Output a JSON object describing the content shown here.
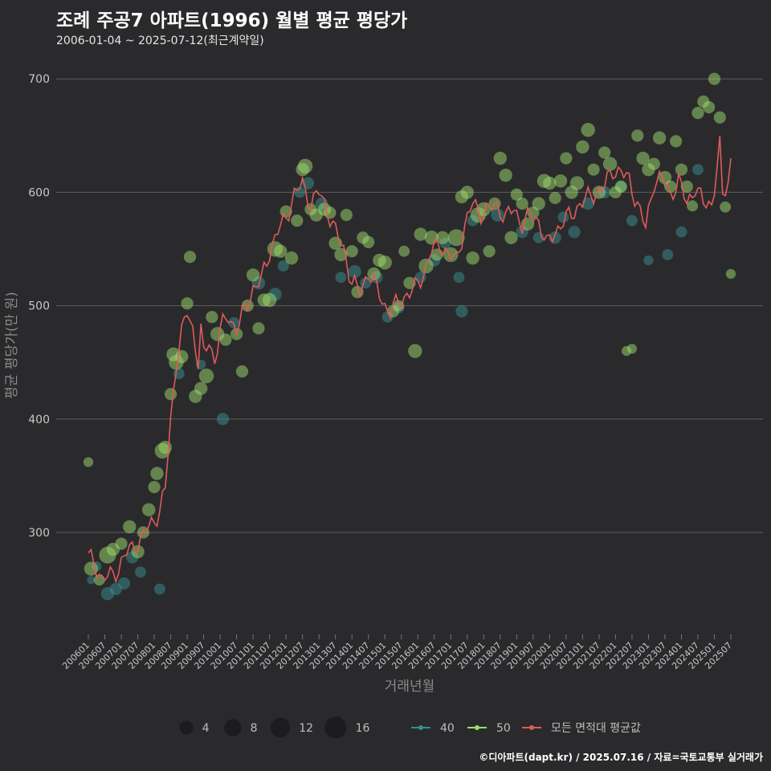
{
  "title": "조례 주공7 아파트(1996) 월별 평균 평당가",
  "subtitle": "2006-01-04 ~ 2025-07-12(최근계약일)",
  "credit": "©디아파트(dapt.kr) / 2025.07.16 / 자료=국토교통부 실거래가",
  "chart_data": {
    "type": "line",
    "title": "조례 주공7 아파트(1996) 월별 평균 평당가",
    "xlabel": "거래년월",
    "ylabel": "평균 평당가(만 원)",
    "ylim": [
      210,
      720
    ],
    "yticks": [
      300,
      400,
      500,
      600,
      700
    ],
    "grid": true,
    "legend_position": "bottom",
    "x_tick_labels": [
      "200601",
      "200607",
      "200701",
      "200707",
      "200801",
      "200807",
      "200901",
      "200907",
      "201001",
      "201007",
      "201101",
      "201107",
      "201201",
      "201207",
      "201301",
      "201307",
      "201401",
      "201407",
      "201501",
      "201507",
      "201601",
      "201607",
      "201701",
      "201707",
      "201801",
      "201807",
      "201901",
      "201907",
      "202001",
      "202007",
      "202101",
      "202107",
      "202201",
      "202207",
      "202301",
      "202307",
      "202401",
      "202407",
      "202501",
      "202507"
    ],
    "size_legend": {
      "title": "",
      "values": [
        4,
        8,
        12,
        16
      ]
    },
    "series_legend": [
      {
        "name": "40",
        "color": "#3a8f8f"
      },
      {
        "name": "50",
        "color": "#9fdc6e"
      },
      {
        "name": "모든 면적대 평균값",
        "color": "#e05a5a"
      }
    ],
    "line_anchors": {
      "series": "모든 면적대 평균값",
      "x_start": "2006-01",
      "points": [
        [
          "2006-01",
          278
        ],
        [
          "2006-03",
          275
        ],
        [
          "2006-06",
          258
        ],
        [
          "2006-09",
          262
        ],
        [
          "2006-12",
          268
        ],
        [
          "2007-03",
          282
        ],
        [
          "2007-06",
          290
        ],
        [
          "2007-08",
          292
        ],
        [
          "2007-11",
          305
        ],
        [
          "2008-01",
          312
        ],
        [
          "2008-03",
          318
        ],
        [
          "2008-05",
          338
        ],
        [
          "2008-07",
          400
        ],
        [
          "2008-09",
          450
        ],
        [
          "2008-11",
          475
        ],
        [
          "2009-01",
          495
        ],
        [
          "2009-03",
          480
        ],
        [
          "2009-05",
          450
        ],
        [
          "2009-06",
          478
        ],
        [
          "2009-07",
          455
        ],
        [
          "2009-09",
          470
        ],
        [
          "2009-11",
          450
        ],
        [
          "2010-01",
          478
        ],
        [
          "2010-04",
          492
        ],
        [
          "2010-07",
          478
        ],
        [
          "2010-10",
          497
        ],
        [
          "2011-01",
          515
        ],
        [
          "2011-04",
          522
        ],
        [
          "2011-07",
          548
        ],
        [
          "2011-10",
          565
        ],
        [
          "2012-01",
          578
        ],
        [
          "2012-04",
          598
        ],
        [
          "2012-07",
          607
        ],
        [
          "2012-10",
          590
        ],
        [
          "2013-01",
          600
        ],
        [
          "2013-04",
          585
        ],
        [
          "2013-07",
          565
        ],
        [
          "2013-10",
          550
        ],
        [
          "2014-01",
          520
        ],
        [
          "2014-04",
          512
        ],
        [
          "2014-07",
          530
        ],
        [
          "2014-10",
          515
        ],
        [
          "2015-01",
          500
        ],
        [
          "2015-03",
          495
        ],
        [
          "2015-06",
          503
        ],
        [
          "2015-09",
          510
        ],
        [
          "2015-12",
          515
        ],
        [
          "2016-03",
          528
        ],
        [
          "2016-06",
          548
        ],
        [
          "2016-09",
          555
        ],
        [
          "2016-12",
          545
        ],
        [
          "2017-03",
          540
        ],
        [
          "2017-06",
          570
        ],
        [
          "2017-09",
          590
        ],
        [
          "2017-12",
          582
        ],
        [
          "2018-03",
          585
        ],
        [
          "2018-06",
          588
        ],
        [
          "2018-09",
          578
        ],
        [
          "2018-12",
          585
        ],
        [
          "2019-03",
          572
        ],
        [
          "2019-06",
          580
        ],
        [
          "2019-09",
          575
        ],
        [
          "2019-12",
          553
        ],
        [
          "2020-03",
          565
        ],
        [
          "2020-06",
          575
        ],
        [
          "2020-09",
          580
        ],
        [
          "2020-12",
          590
        ],
        [
          "2021-03",
          595
        ],
        [
          "2021-06",
          600
        ],
        [
          "2021-09",
          605
        ],
        [
          "2021-12",
          620
        ],
        [
          "2022-03",
          618
        ],
        [
          "2022-06",
          610
        ],
        [
          "2022-09",
          590
        ],
        [
          "2022-12",
          568
        ],
        [
          "2023-03",
          610
        ],
        [
          "2023-06",
          612
        ],
        [
          "2023-09",
          598
        ],
        [
          "2023-12",
          610
        ],
        [
          "2024-03",
          590
        ],
        [
          "2024-06",
          605
        ],
        [
          "2024-09",
          590
        ],
        [
          "2024-12",
          590
        ],
        [
          "2025-01",
          605
        ],
        [
          "2025-03",
          640
        ],
        [
          "2025-04",
          595
        ],
        [
          "2025-06",
          610
        ],
        [
          "2025-07",
          630
        ]
      ]
    },
    "bubbles_40": [
      [
        "2006-02",
        258,
        1
      ],
      [
        "2006-04",
        270,
        2
      ],
      [
        "2006-08",
        246,
        5
      ],
      [
        "2006-11",
        250,
        4
      ],
      [
        "2007-02",
        255,
        4
      ],
      [
        "2007-05",
        278,
        4
      ],
      [
        "2007-08",
        265,
        3
      ],
      [
        "2008-03",
        250,
        3
      ],
      [
        "2008-10",
        440,
        3
      ],
      [
        "2009-06",
        448,
        2
      ],
      [
        "2010-02",
        400,
        4
      ],
      [
        "2010-06",
        485,
        3
      ],
      [
        "2011-03",
        520,
        5
      ],
      [
        "2011-09",
        510,
        5
      ],
      [
        "2011-12",
        535,
        3
      ],
      [
        "2012-06",
        600,
        3
      ],
      [
        "2012-09",
        608,
        4
      ],
      [
        "2013-02",
        590,
        4
      ],
      [
        "2013-09",
        525,
        3
      ],
      [
        "2014-02",
        530,
        5
      ],
      [
        "2014-06",
        520,
        3
      ],
      [
        "2014-10",
        525,
        4
      ],
      [
        "2015-02",
        490,
        3
      ],
      [
        "2015-06",
        498,
        3
      ],
      [
        "2016-02",
        525,
        3
      ],
      [
        "2016-07",
        540,
        4
      ],
      [
        "2016-11",
        555,
        3
      ],
      [
        "2017-04",
        525,
        3
      ],
      [
        "2017-05",
        495,
        4
      ],
      [
        "2017-09",
        575,
        3
      ],
      [
        "2018-06",
        580,
        5
      ],
      [
        "2019-03",
        565,
        4
      ],
      [
        "2019-09",
        560,
        3
      ],
      [
        "2020-03",
        560,
        4
      ],
      [
        "2020-06",
        578,
        3
      ],
      [
        "2020-10",
        565,
        4
      ],
      [
        "2021-03",
        590,
        4
      ],
      [
        "2021-09",
        600,
        4
      ],
      [
        "2022-03",
        605,
        3
      ],
      [
        "2022-07",
        575,
        3
      ],
      [
        "2023-01",
        540,
        2
      ],
      [
        "2023-08",
        545,
        3
      ],
      [
        "2024-01",
        565,
        3
      ],
      [
        "2024-07",
        620,
        3
      ]
    ],
    "bubbles_50": [
      [
        "2006-01",
        362,
        2
      ],
      [
        "2006-02",
        268,
        6
      ],
      [
        "2006-05",
        258,
        3
      ],
      [
        "2006-08",
        280,
        10
      ],
      [
        "2006-10",
        285,
        5
      ],
      [
        "2007-01",
        290,
        4
      ],
      [
        "2007-04",
        305,
        5
      ],
      [
        "2007-07",
        283,
        5
      ],
      [
        "2007-09",
        300,
        4
      ],
      [
        "2007-11",
        320,
        5
      ],
      [
        "2008-01",
        340,
        4
      ],
      [
        "2008-02",
        352,
        5
      ],
      [
        "2008-04",
        372,
        8
      ],
      [
        "2008-05",
        375,
        5
      ],
      [
        "2008-07",
        422,
        4
      ],
      [
        "2008-08",
        457,
        6
      ],
      [
        "2008-09",
        450,
        7
      ],
      [
        "2008-11",
        455,
        5
      ],
      [
        "2009-01",
        502,
        4
      ],
      [
        "2009-02",
        543,
        4
      ],
      [
        "2009-04",
        420,
        5
      ],
      [
        "2009-06",
        427,
        5
      ],
      [
        "2009-08",
        438,
        7
      ],
      [
        "2009-10",
        490,
        4
      ],
      [
        "2009-12",
        475,
        6
      ],
      [
        "2010-03",
        470,
        4
      ],
      [
        "2010-07",
        475,
        4
      ],
      [
        "2010-09",
        442,
        4
      ],
      [
        "2010-11",
        500,
        4
      ],
      [
        "2011-01",
        527,
        5
      ],
      [
        "2011-03",
        480,
        4
      ],
      [
        "2011-05",
        505,
        5
      ],
      [
        "2011-07",
        505,
        6
      ],
      [
        "2011-09",
        550,
        8
      ],
      [
        "2011-11",
        548,
        5
      ],
      [
        "2012-01",
        583,
        4
      ],
      [
        "2012-03",
        542,
        5
      ],
      [
        "2012-05",
        575,
        4
      ],
      [
        "2012-07",
        620,
        5
      ],
      [
        "2012-08",
        623,
        7
      ],
      [
        "2012-10",
        585,
        4
      ],
      [
        "2012-12",
        580,
        5
      ],
      [
        "2013-03",
        585,
        5
      ],
      [
        "2013-05",
        582,
        4
      ],
      [
        "2013-07",
        555,
        5
      ],
      [
        "2013-09",
        545,
        5
      ],
      [
        "2013-11",
        580,
        4
      ],
      [
        "2014-01",
        548,
        4
      ],
      [
        "2014-03",
        512,
        4
      ],
      [
        "2014-05",
        560,
        4
      ],
      [
        "2014-07",
        556,
        4
      ],
      [
        "2014-09",
        528,
        5
      ],
      [
        "2014-11",
        540,
        5
      ],
      [
        "2015-01",
        538,
        6
      ],
      [
        "2015-04",
        495,
        4
      ],
      [
        "2015-06",
        500,
        3
      ],
      [
        "2015-08",
        548,
        3
      ],
      [
        "2015-10",
        520,
        4
      ],
      [
        "2015-12",
        460,
        6
      ],
      [
        "2016-02",
        563,
        5
      ],
      [
        "2016-04",
        535,
        7
      ],
      [
        "2016-06",
        560,
        6
      ],
      [
        "2016-08",
        545,
        4
      ],
      [
        "2016-10",
        560,
        5
      ],
      [
        "2017-01",
        545,
        7
      ],
      [
        "2017-03",
        560,
        10
      ],
      [
        "2017-05",
        596,
        5
      ],
      [
        "2017-07",
        600,
        5
      ],
      [
        "2017-09",
        542,
        5
      ],
      [
        "2017-11",
        580,
        8
      ],
      [
        "2018-01",
        585,
        6
      ],
      [
        "2018-03",
        548,
        4
      ],
      [
        "2018-05",
        590,
        4
      ],
      [
        "2018-07",
        630,
        5
      ],
      [
        "2018-09",
        615,
        5
      ],
      [
        "2018-11",
        560,
        5
      ],
      [
        "2019-01",
        598,
        4
      ],
      [
        "2019-03",
        590,
        4
      ],
      [
        "2019-05",
        572,
        5
      ],
      [
        "2019-07",
        582,
        4
      ],
      [
        "2019-09",
        590,
        5
      ],
      [
        "2019-11",
        610,
        6
      ],
      [
        "2020-01",
        608,
        5
      ],
      [
        "2020-03",
        595,
        4
      ],
      [
        "2020-05",
        610,
        5
      ],
      [
        "2020-07",
        630,
        4
      ],
      [
        "2020-09",
        600,
        5
      ],
      [
        "2020-11",
        608,
        6
      ],
      [
        "2021-01",
        640,
        5
      ],
      [
        "2021-03",
        655,
        6
      ],
      [
        "2021-05",
        620,
        4
      ],
      [
        "2021-07",
        600,
        5
      ],
      [
        "2021-09",
        635,
        4
      ],
      [
        "2021-11",
        625,
        6
      ],
      [
        "2022-01",
        600,
        4
      ],
      [
        "2022-03",
        605,
        4
      ],
      [
        "2022-05",
        460,
        2
      ],
      [
        "2022-07",
        462,
        2
      ],
      [
        "2022-09",
        650,
        4
      ],
      [
        "2022-11",
        630,
        5
      ],
      [
        "2023-01",
        620,
        5
      ],
      [
        "2023-03",
        625,
        4
      ],
      [
        "2023-05",
        648,
        5
      ],
      [
        "2023-07",
        613,
        5
      ],
      [
        "2023-09",
        605,
        4
      ],
      [
        "2023-11",
        645,
        4
      ],
      [
        "2024-01",
        620,
        4
      ],
      [
        "2024-03",
        605,
        4
      ],
      [
        "2024-05",
        588,
        3
      ],
      [
        "2024-07",
        670,
        4
      ],
      [
        "2024-09",
        680,
        4
      ],
      [
        "2024-11",
        675,
        4
      ],
      [
        "2025-01",
        700,
        4
      ],
      [
        "2025-03",
        666,
        4
      ],
      [
        "2025-05",
        587,
        3
      ],
      [
        "2025-07",
        528,
        2
      ]
    ]
  }
}
